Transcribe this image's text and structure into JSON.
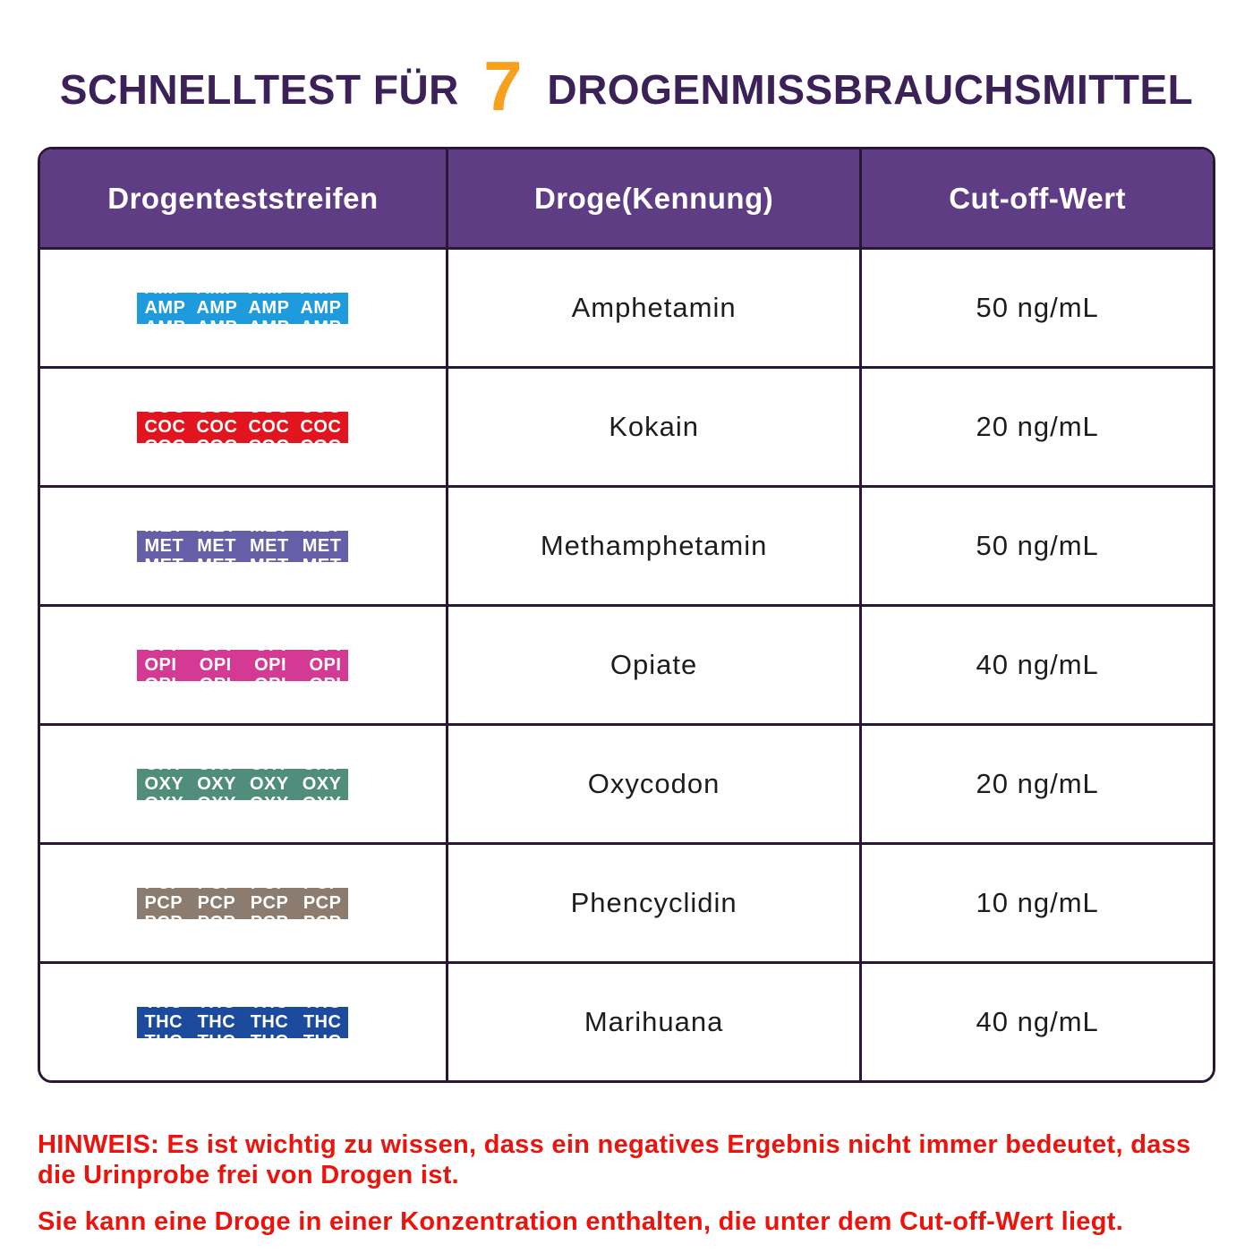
{
  "title": {
    "prefix": "SCHNELLTEST FÜR",
    "count": "7",
    "suffix": "DROGENMISSBRAUCHSMITTEL"
  },
  "colors": {
    "title_purple": "#3b2157",
    "accent_orange": "#f7a01d",
    "header_bg": "#5f3d85",
    "table_border": "#2a1735",
    "note_red": "#ed130c"
  },
  "table": {
    "headers": [
      "Drogenteststreifen",
      "Droge(Kennung)",
      "Cut-off-Wert"
    ],
    "rows": [
      {
        "code": "AMP",
        "strip_color": "#1e9bdd",
        "drug": "Amphetamin",
        "cutoff": "50 ng/mL"
      },
      {
        "code": "COC",
        "strip_color": "#e2141e",
        "drug": "Kokain",
        "cutoff": "20 ng/mL"
      },
      {
        "code": "MET",
        "strip_color": "#655fa7",
        "drug": "Methamphetamin",
        "cutoff": "50 ng/mL"
      },
      {
        "code": "OPI",
        "strip_color": "#d43a94",
        "drug": "Opiate",
        "cutoff": "40 ng/mL"
      },
      {
        "code": "OXY",
        "strip_color": "#518d7b",
        "drug": "Oxycodon",
        "cutoff": "20 ng/mL"
      },
      {
        "code": "PCP",
        "strip_color": "#8c7c6f",
        "drug": "Phencyclidin",
        "cutoff": "10 ng/mL"
      },
      {
        "code": "THC",
        "strip_color": "#1c4b9d",
        "drug": "Marihuana",
        "cutoff": "40 ng/mL"
      }
    ]
  },
  "notes": {
    "note1": "HINWEIS: Es ist wichtig zu wissen, dass ein negatives Ergebnis nicht immer bedeutet, dass die Urinprobe frei von Drogen ist.",
    "note2": "Sie kann eine Droge in einer Konzentration enthalten, die unter dem Cut-off-Wert liegt."
  }
}
